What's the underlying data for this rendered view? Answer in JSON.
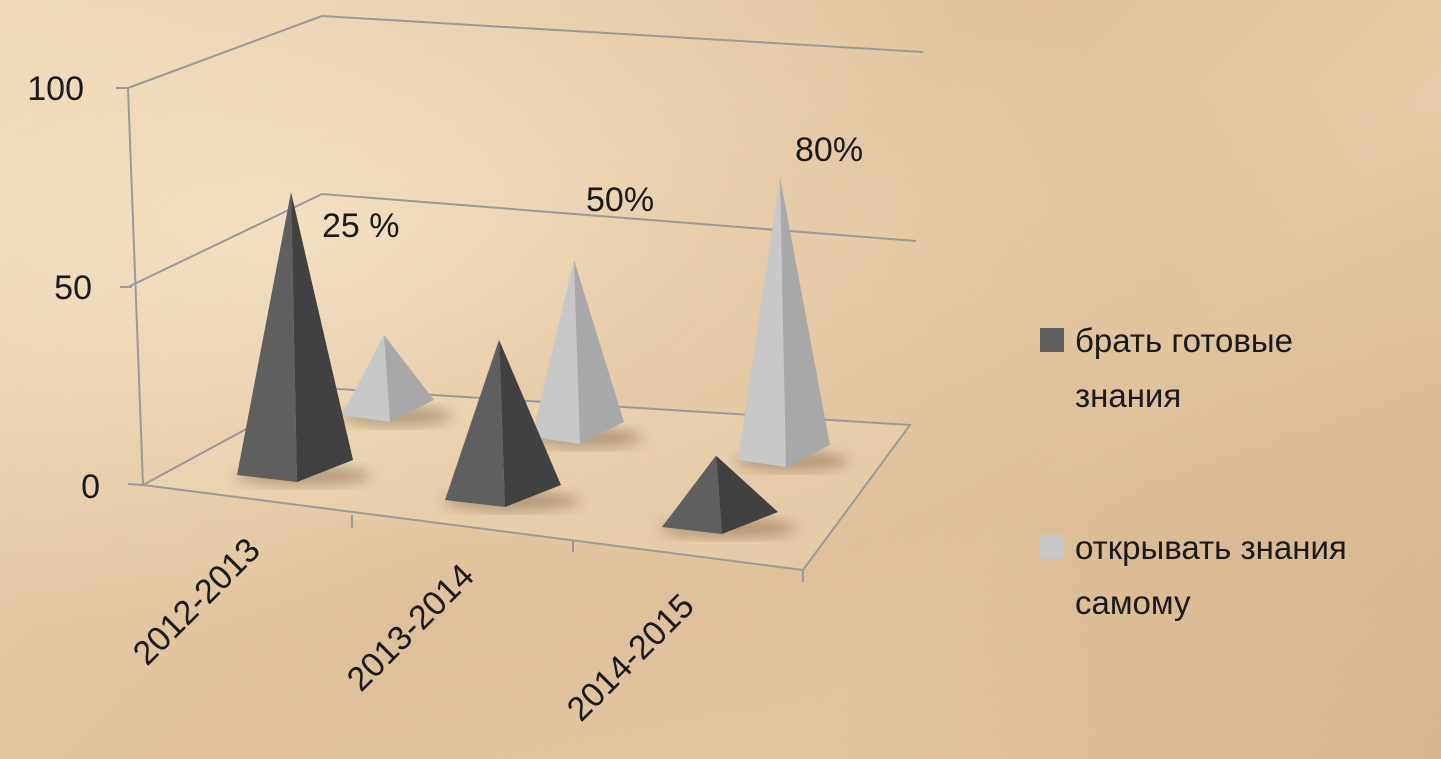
{
  "chart_data": {
    "type": "bar",
    "subtype": "3d-pyramid-clustered",
    "categories": [
      "2012-2013",
      "2013-2014",
      "2014-2015"
    ],
    "series": [
      {
        "name": "брать готовые знания",
        "values": [
          85,
          47,
          20
        ],
        "color": "#5f5f5f"
      },
      {
        "name": "открывать знания самому",
        "values": [
          25,
          50,
          80
        ],
        "color": "#c8c8c8"
      }
    ],
    "data_labels": [
      "25 %",
      "50%",
      "80%"
    ],
    "yticks": [
      "0",
      "50",
      "100"
    ],
    "ylim": [
      0,
      100
    ],
    "grid": true,
    "legend_position": "right"
  }
}
